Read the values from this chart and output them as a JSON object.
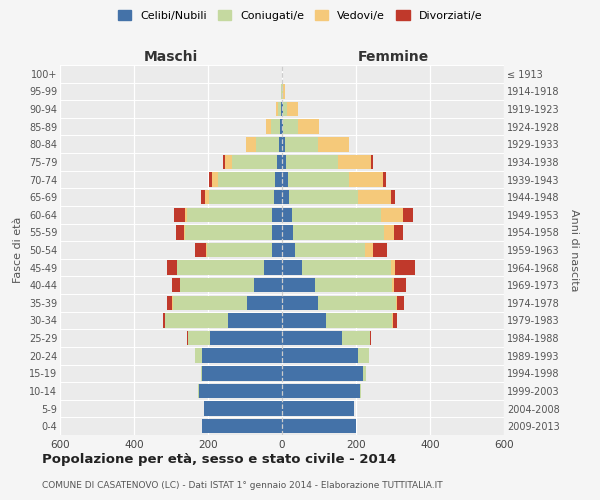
{
  "age_groups": [
    "0-4",
    "5-9",
    "10-14",
    "15-19",
    "20-24",
    "25-29",
    "30-34",
    "35-39",
    "40-44",
    "45-49",
    "50-54",
    "55-59",
    "60-64",
    "65-69",
    "70-74",
    "75-79",
    "80-84",
    "85-89",
    "90-94",
    "95-99",
    "100+"
  ],
  "birth_years": [
    "2009-2013",
    "2004-2008",
    "1999-2003",
    "1994-1998",
    "1989-1993",
    "1984-1988",
    "1979-1983",
    "1974-1978",
    "1969-1973",
    "1964-1968",
    "1959-1963",
    "1954-1958",
    "1949-1953",
    "1944-1948",
    "1939-1943",
    "1934-1938",
    "1929-1933",
    "1924-1928",
    "1919-1923",
    "1914-1918",
    "≤ 1913"
  ],
  "maschi": {
    "celibi": [
      215,
      210,
      225,
      215,
      215,
      195,
      145,
      95,
      75,
      48,
      28,
      28,
      28,
      22,
      18,
      14,
      8,
      5,
      3,
      1,
      0
    ],
    "coniugati": [
      0,
      0,
      2,
      5,
      20,
      60,
      170,
      200,
      200,
      235,
      175,
      235,
      230,
      175,
      155,
      120,
      62,
      25,
      8,
      2,
      0
    ],
    "vedovi": [
      0,
      0,
      0,
      0,
      0,
      0,
      1,
      1,
      2,
      2,
      2,
      3,
      5,
      12,
      15,
      20,
      28,
      14,
      5,
      1,
      0
    ],
    "divorziati": [
      0,
      0,
      0,
      0,
      0,
      2,
      5,
      15,
      20,
      25,
      30,
      20,
      30,
      10,
      8,
      5,
      0,
      0,
      0,
      0,
      0
    ]
  },
  "femmine": {
    "nubili": [
      200,
      195,
      210,
      220,
      205,
      162,
      120,
      98,
      88,
      55,
      35,
      30,
      28,
      20,
      15,
      10,
      8,
      4,
      2,
      1,
      0
    ],
    "coniugate": [
      0,
      0,
      3,
      8,
      30,
      75,
      178,
      210,
      210,
      240,
      190,
      245,
      240,
      185,
      165,
      140,
      88,
      38,
      12,
      3,
      0
    ],
    "vedove": [
      0,
      0,
      0,
      0,
      0,
      1,
      2,
      3,
      5,
      10,
      20,
      28,
      58,
      90,
      92,
      90,
      85,
      58,
      30,
      5,
      1
    ],
    "divorziate": [
      0,
      0,
      0,
      0,
      0,
      3,
      10,
      18,
      32,
      55,
      40,
      25,
      28,
      10,
      8,
      5,
      0,
      0,
      0,
      0,
      0
    ]
  },
  "colors": {
    "celibi": "#4472a8",
    "coniugati": "#c5d9a0",
    "vedovi": "#f5c97a",
    "divorziati": "#c0392b"
  },
  "title": "Popolazione per età, sesso e stato civile - 2014",
  "subtitle": "COMUNE DI CASATENOVO (LC) - Dati ISTAT 1° gennaio 2014 - Elaborazione TUTTITALIA.IT",
  "xlabel_left": "Maschi",
  "xlabel_right": "Femmine",
  "ylabel_left": "Fasce di età",
  "ylabel_right": "Anni di nascita",
  "xlim": 600
}
